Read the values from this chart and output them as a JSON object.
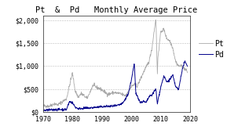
{
  "title": "Pt  &  Pd   Monthly Average Price",
  "xlim": [
    1970,
    2020
  ],
  "ylim": [
    0,
    2100
  ],
  "yticks": [
    0,
    500,
    1000,
    1500,
    2000
  ],
  "ytick_labels": [
    "$0",
    "$500",
    "$1,000",
    "$1,500",
    "$2,000"
  ],
  "xticks": [
    1970,
    1980,
    1990,
    2000,
    2010,
    2020
  ],
  "pt_color": "#aaaaaa",
  "pd_color": "#00008B",
  "legend_pt": "Pt",
  "legend_pd": "Pd",
  "title_fontsize": 7.5,
  "tick_fontsize": 6,
  "legend_fontsize": 7,
  "pt_keypoints": [
    [
      1970,
      130
    ],
    [
      1972,
      120
    ],
    [
      1974,
      180
    ],
    [
      1975,
      150
    ],
    [
      1978,
      280
    ],
    [
      1980,
      850
    ],
    [
      1981,
      450
    ],
    [
      1982,
      320
    ],
    [
      1983,
      400
    ],
    [
      1985,
      290
    ],
    [
      1987,
      580
    ],
    [
      1988,
      540
    ],
    [
      1990,
      480
    ],
    [
      1992,
      380
    ],
    [
      1994,
      420
    ],
    [
      1996,
      400
    ],
    [
      1998,
      350
    ],
    [
      2000,
      550
    ],
    [
      2001,
      600
    ],
    [
      2002,
      560
    ],
    [
      2004,
      850
    ],
    [
      2006,
      1100
    ],
    [
      2007,
      1400
    ],
    [
      2008.3,
      2050
    ],
    [
      2008.8,
      800
    ],
    [
      2009,
      1200
    ],
    [
      2010,
      1750
    ],
    [
      2011,
      1800
    ],
    [
      2012,
      1600
    ],
    [
      2013,
      1550
    ],
    [
      2014,
      1400
    ],
    [
      2015,
      1100
    ],
    [
      2016,
      1000
    ],
    [
      2017,
      1000
    ],
    [
      2018,
      950
    ],
    [
      2019,
      870
    ]
  ],
  "pd_keypoints": [
    [
      1970,
      30
    ],
    [
      1975,
      50
    ],
    [
      1978,
      50
    ],
    [
      1979,
      220
    ],
    [
      1980,
      200
    ],
    [
      1981,
      100
    ],
    [
      1982,
      70
    ],
    [
      1985,
      80
    ],
    [
      1990,
      110
    ],
    [
      1995,
      130
    ],
    [
      1997,
      180
    ],
    [
      1998,
      280
    ],
    [
      1999,
      400
    ],
    [
      2000,
      700
    ],
    [
      2001.0,
      1050
    ],
    [
      2001.5,
      400
    ],
    [
      2002,
      350
    ],
    [
      2003,
      200
    ],
    [
      2004,
      230
    ],
    [
      2005,
      200
    ],
    [
      2006,
      330
    ],
    [
      2007,
      370
    ],
    [
      2008.3,
      500
    ],
    [
      2008.8,
      160
    ],
    [
      2009,
      250
    ],
    [
      2010,
      550
    ],
    [
      2011,
      780
    ],
    [
      2012,
      650
    ],
    [
      2013,
      700
    ],
    [
      2014,
      800
    ],
    [
      2015,
      550
    ],
    [
      2016,
      480
    ],
    [
      2017,
      850
    ],
    [
      2018,
      1100
    ],
    [
      2019,
      1000
    ]
  ]
}
